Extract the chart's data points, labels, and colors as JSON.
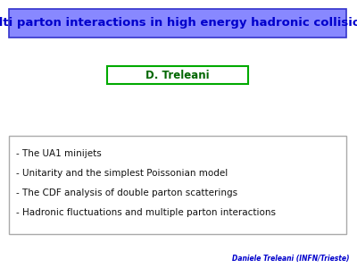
{
  "title": "Multi parton interactions in high energy hadronic collisions",
  "title_bg": "#8888ff",
  "title_border": "#3333cc",
  "title_color": "#0000cc",
  "title_fontsize": 9.5,
  "author": "D. Treleani",
  "author_color": "#006600",
  "author_box_color": "#00aa00",
  "author_fontsize": 8.5,
  "bullet_items": [
    "- The UA1 minijets",
    "- Unitarity and the simplest Poissonian model",
    "- The CDF analysis of double parton scatterings",
    "- Hadronic fluctuations and multiple parton interactions"
  ],
  "bullet_fontsize": 7.5,
  "bullet_color": "#111111",
  "footer": "Daniele Treleani (INFN/Trieste)",
  "footer_color": "#0000cc",
  "footer_fontsize": 5.5,
  "slide_bg": "#ffffff",
  "box_border": "#aaaaaa"
}
